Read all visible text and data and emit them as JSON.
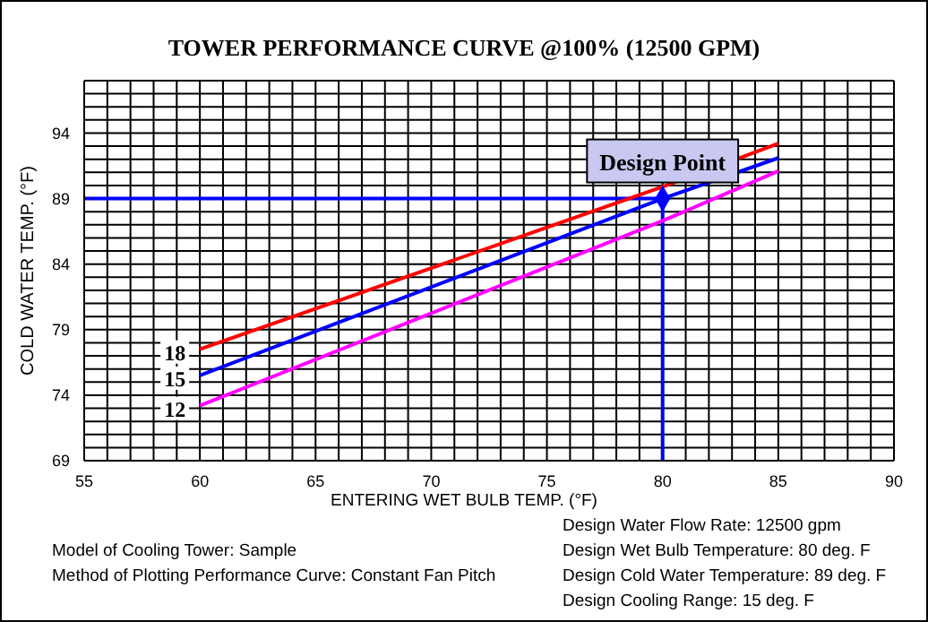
{
  "chart_data": {
    "type": "line",
    "title": "TOWER PERFORMANCE CURVE @100% (12500 GPM)",
    "xlabel": "ENTERING WET BULB TEMP. (°F)",
    "ylabel": "COLD WATER TEMP. (°F)",
    "xlim": [
      55,
      90
    ],
    "xticks": [
      55,
      {
        "value": 56,
        "label": null
      },
      {
        "value": 57,
        "label": null
      },
      {
        "value": 58,
        "label": null
      },
      {
        "value": 59,
        "label": null
      },
      60,
      {
        "value": 61,
        "label": null
      },
      {
        "value": 62,
        "label": null
      },
      {
        "value": 63,
        "label": null
      },
      {
        "value": 64,
        "label": null
      },
      65,
      {
        "value": 66,
        "label": null
      },
      {
        "value": 67,
        "label": null
      },
      {
        "value": 68,
        "label": null
      },
      {
        "value": 69,
        "label": null
      },
      70,
      {
        "value": 71,
        "label": null
      },
      {
        "value": 72,
        "label": null
      },
      {
        "value": 73,
        "label": null
      },
      {
        "value": 74,
        "label": null
      },
      75,
      {
        "value": 76,
        "label": null
      },
      {
        "value": 77,
        "label": null
      },
      {
        "value": 78,
        "label": null
      },
      {
        "value": 79,
        "label": null
      },
      80,
      {
        "value": 81,
        "label": null
      },
      {
        "value": 82,
        "label": null
      },
      {
        "value": 83,
        "label": null
      },
      {
        "value": 84,
        "label": null
      },
      85,
      {
        "value": 86,
        "label": null
      },
      {
        "value": 87,
        "label": null
      },
      {
        "value": 88,
        "label": null
      },
      {
        "value": 89,
        "label": null
      },
      90
    ],
    "ylim": [
      69,
      98
    ],
    "yticks": [
      69,
      {
        "value": 70,
        "label": null
      },
      {
        "value": 71,
        "label": null
      },
      {
        "value": 72,
        "label": null
      },
      {
        "value": 73,
        "label": null
      },
      74,
      {
        "value": 75,
        "label": null
      },
      {
        "value": 76,
        "label": null
      },
      {
        "value": 77,
        "label": null
      },
      {
        "value": 78,
        "label": null
      },
      79,
      {
        "value": 80,
        "label": null
      },
      {
        "value": 81,
        "label": null
      },
      {
        "value": 82,
        "label": null
      },
      {
        "value": 83,
        "label": null
      },
      84,
      {
        "value": 85,
        "label": null
      },
      {
        "value": 86,
        "label": null
      },
      {
        "value": 87,
        "label": null
      },
      {
        "value": 88,
        "label": null
      },
      89,
      {
        "value": 90,
        "label": null
      },
      {
        "value": 91,
        "label": null
      },
      {
        "value": 92,
        "label": null
      },
      {
        "value": 93,
        "label": null
      },
      94,
      {
        "value": 95,
        "label": null
      },
      {
        "value": 96,
        "label": null
      },
      {
        "value": 97,
        "label": null
      },
      {
        "value": 98,
        "label": null
      }
    ],
    "grid": true,
    "series": [
      {
        "name": "18",
        "color": "#ff0000",
        "x": [
          60,
          80,
          85
        ],
        "values": [
          77.5,
          89.9,
          93.2
        ]
      },
      {
        "name": "15",
        "color": "#0000ff",
        "x": [
          60,
          80,
          85
        ],
        "values": [
          75.5,
          89,
          92.1
        ]
      },
      {
        "name": "12",
        "color": "#ff00ff",
        "x": [
          60,
          80,
          85
        ],
        "values": [
          73.2,
          87.3,
          91.1
        ]
      },
      {
        "type": "scatter",
        "color": "#0000ff",
        "marker": "diamond",
        "x": [
          80
        ],
        "values": [
          89
        ]
      }
    ],
    "ref_lines": [
      {
        "axis": "y",
        "value": 89,
        "color": "#0000ff"
      },
      {
        "axis": "x",
        "value": 80,
        "color": "#0000ff"
      }
    ],
    "annotations": [
      {
        "text": "Design Point",
        "x": 80,
        "y": 89
      },
      "Model of Cooling Tower: Sample",
      "Method of Plotting Performance Curve: Constant Fan Pitch",
      "Design Water Flow Rate: 12500 gpm",
      "Design Wet Bulb Temperature: 80 deg. F",
      "Design Cold Water Temperature: 89 deg. F",
      "Design Cooling Range: 15 deg. F"
    ]
  }
}
